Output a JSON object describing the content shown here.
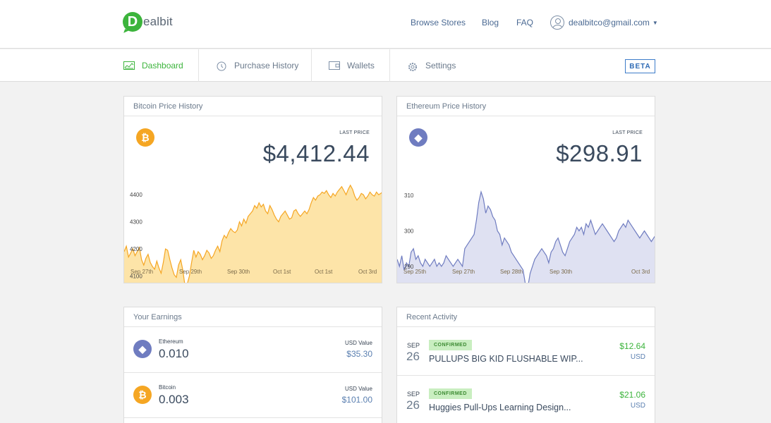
{
  "brand": {
    "letter": "D",
    "name": "ealbit"
  },
  "topnav": {
    "browse": "Browse Stores",
    "blog": "Blog",
    "faq": "FAQ",
    "user_email": "dealbitco@gmail.com"
  },
  "tabs": [
    {
      "label": "Dashboard",
      "icon": "dashboard-icon"
    },
    {
      "label": "Purchase History",
      "icon": "history-icon"
    },
    {
      "label": "Wallets",
      "icon": "wallet-icon"
    },
    {
      "label": "Settings",
      "icon": "gear-icon"
    }
  ],
  "beta": "BETA",
  "colors": {
    "accent": "#3cb43c",
    "btc": "#f5a623",
    "eth": "#6f7cc0",
    "btc_fill": "#fde4a8",
    "eth_fill": "#dfe1f2"
  },
  "btc_panel": {
    "title": "Bitcoin Price History",
    "last_label": "LAST PRICE",
    "last_price": "$4,412.44"
  },
  "eth_panel": {
    "title": "Ethereum Price History",
    "last_label": "LAST PRICE",
    "last_price": "$298.91"
  },
  "chart_data": [
    {
      "type": "area",
      "title": "Bitcoin Price History",
      "x_ticks": [
        "Sep 27th",
        "Sep 29th",
        "Sep 30th",
        "Oct 1st",
        "Oct 1st",
        "Oct 3rd"
      ],
      "y_ticks": [
        4100,
        4200,
        4300,
        4400
      ],
      "ylim": [
        4070,
        4450
      ],
      "values": [
        4190,
        4210,
        4170,
        4185,
        4200,
        4175,
        4190,
        4205,
        4160,
        4140,
        4165,
        4180,
        4150,
        4135,
        4125,
        4155,
        4130,
        4110,
        4150,
        4200,
        4195,
        4160,
        4130,
        4105,
        4095,
        4140,
        4160,
        4120,
        4060,
        4070,
        4100,
        4150,
        4195,
        4170,
        4190,
        4180,
        4160,
        4175,
        4195,
        4185,
        4165,
        4175,
        4195,
        4210,
        4190,
        4230,
        4250,
        4240,
        4260,
        4275,
        4265,
        4260,
        4270,
        4300,
        4285,
        4310,
        4295,
        4320,
        4330,
        4340,
        4360,
        4350,
        4370,
        4355,
        4365,
        4340,
        4330,
        4360,
        4345,
        4325,
        4310,
        4300,
        4320,
        4330,
        4340,
        4325,
        4310,
        4315,
        4340,
        4345,
        4330,
        4320,
        4330,
        4340,
        4330,
        4345,
        4370,
        4390,
        4380,
        4395,
        4400,
        4410,
        4405,
        4415,
        4400,
        4390,
        4405,
        4395,
        4410,
        4420,
        4430,
        4415,
        4400,
        4420,
        4435,
        4420,
        4395,
        4380,
        4390,
        4405,
        4400,
        4385,
        4395,
        4410,
        4400,
        4395,
        4410,
        4400,
        4405,
        4412
      ]
    },
    {
      "type": "area",
      "title": "Ethereum Price History",
      "x_ticks": [
        "Sep 25th",
        "Sep 27th",
        "Sep 28th",
        "Sep 30th",
        "Oct 3rd"
      ],
      "y_ticks": [
        290,
        300,
        310
      ],
      "ylim": [
        285,
        314
      ],
      "values": [
        292,
        290,
        293,
        289,
        291,
        290,
        294,
        295,
        292,
        293,
        291,
        290,
        292,
        291,
        290,
        291,
        292,
        290,
        291,
        290,
        291,
        293,
        292,
        291,
        290,
        291,
        292,
        291,
        290,
        295,
        296,
        297,
        298,
        299,
        303,
        308,
        311,
        309,
        305,
        307,
        306,
        304,
        303,
        300,
        299,
        296,
        298,
        297,
        296,
        294,
        293,
        292,
        291,
        290,
        289,
        285,
        284,
        288,
        290,
        292,
        293,
        294,
        295,
        294,
        293,
        291,
        294,
        295,
        297,
        298,
        296,
        294,
        293,
        295,
        297,
        298,
        299,
        301,
        300,
        301,
        299,
        302,
        301,
        303,
        301,
        299,
        300,
        301,
        302,
        301,
        300,
        299,
        298,
        297,
        298,
        300,
        301,
        302,
        301,
        303,
        302,
        301,
        300,
        299,
        298,
        299,
        300,
        299,
        298,
        297,
        298,
        299
      ]
    }
  ],
  "earnings": {
    "title": "Your Earnings",
    "rows": [
      {
        "name": "Ethereum",
        "amount": "0.010",
        "usd_label": "USD Value",
        "usd": "$35.30",
        "icon": "ethereum-icon"
      },
      {
        "name": "Bitcoin",
        "amount": "0.003",
        "usd_label": "USD Value",
        "usd": "$101.00",
        "icon": "bitcoin-icon"
      }
    ]
  },
  "activity": {
    "title": "Recent Activity",
    "rows": [
      {
        "month": "SEP",
        "day": "26",
        "status": "CONFIRMED",
        "title": "PULLUPS BIG KID FLUSHABLE WIP...",
        "amount": "$12.64",
        "currency": "USD"
      },
      {
        "month": "SEP",
        "day": "26",
        "status": "CONFIRMED",
        "title": "Huggies Pull-Ups Learning Design...",
        "amount": "$21.06",
        "currency": "USD"
      }
    ]
  }
}
